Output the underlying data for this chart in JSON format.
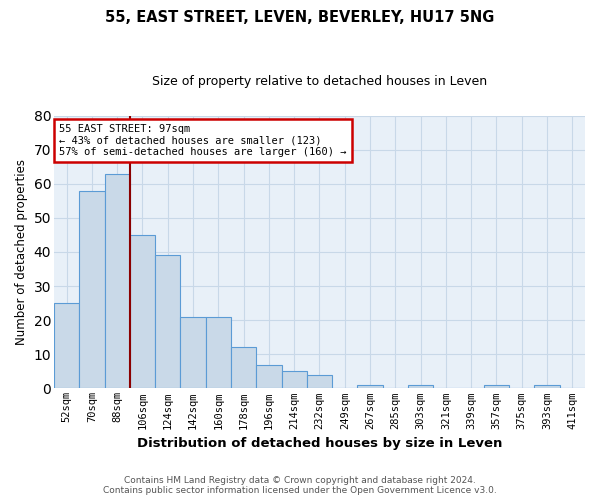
{
  "title1": "55, EAST STREET, LEVEN, BEVERLEY, HU17 5NG",
  "title2": "Size of property relative to detached houses in Leven",
  "xlabel": "Distribution of detached houses by size in Leven",
  "ylabel": "Number of detached properties",
  "bar_labels": [
    "52sqm",
    "70sqm",
    "88sqm",
    "106sqm",
    "124sqm",
    "142sqm",
    "160sqm",
    "178sqm",
    "196sqm",
    "214sqm",
    "232sqm",
    "249sqm",
    "267sqm",
    "285sqm",
    "303sqm",
    "321sqm",
    "339sqm",
    "357sqm",
    "375sqm",
    "393sqm",
    "411sqm"
  ],
  "bar_heights": [
    25,
    58,
    63,
    45,
    39,
    21,
    21,
    12,
    7,
    5,
    4,
    0,
    1,
    0,
    1,
    0,
    0,
    1,
    0,
    1,
    0
  ],
  "bar_color": "#c9d9e8",
  "bar_edge_color": "#5b9bd5",
  "ylim": [
    0,
    80
  ],
  "yticks": [
    0,
    10,
    20,
    30,
    40,
    50,
    60,
    70,
    80
  ],
  "vline_x_index": 2.5,
  "vline_color": "#8b0000",
  "annotation_text": "55 EAST STREET: 97sqm\n← 43% of detached houses are smaller (123)\n57% of semi-detached houses are larger (160) →",
  "annotation_box_color": "#ffffff",
  "annotation_box_edge": "#cc0000",
  "footer": "Contains HM Land Registry data © Crown copyright and database right 2024.\nContains public sector information licensed under the Open Government Licence v3.0.",
  "grid_color": "#c8d8e8",
  "bg_color": "#e8f0f8"
}
